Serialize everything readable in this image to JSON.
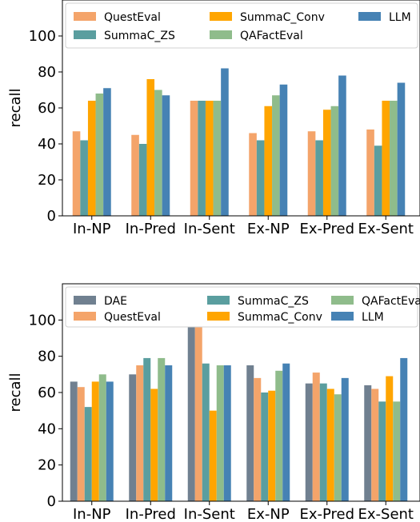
{
  "chart_data": [
    {
      "type": "bar",
      "title": "",
      "xlabel": "",
      "ylabel": "recall",
      "ylim": [
        0,
        120
      ],
      "yticks": [
        0,
        20,
        40,
        60,
        80,
        100
      ],
      "grid": false,
      "legend_position": "top",
      "categories": [
        "In-NP",
        "In-Pred",
        "In-Sent",
        "Ex-NP",
        "Ex-Pred",
        "Ex-Sent"
      ],
      "series": [
        {
          "name": "QuestEval",
          "color": "#f4a46a",
          "values": [
            47,
            45,
            64,
            46,
            47,
            48
          ]
        },
        {
          "name": "SummaC_ZS",
          "color": "#5a9e9f",
          "values": [
            42,
            40,
            64,
            42,
            42,
            39
          ]
        },
        {
          "name": "SummaC_Conv",
          "color": "#ffa500",
          "values": [
            64,
            76,
            64,
            61,
            59,
            64
          ]
        },
        {
          "name": "QAFactEval",
          "color": "#8fbc8b",
          "values": [
            68,
            70,
            64,
            67,
            61,
            64
          ]
        },
        {
          "name": "LLM",
          "color": "#4682b4",
          "values": [
            71,
            67,
            82,
            73,
            78,
            74
          ]
        }
      ]
    },
    {
      "type": "bar",
      "title": "",
      "xlabel": "",
      "ylabel": "recall",
      "ylim": [
        0,
        120
      ],
      "yticks": [
        0,
        20,
        40,
        60,
        80,
        100
      ],
      "grid": false,
      "legend_position": "top",
      "categories": [
        "In-NP",
        "In-Pred",
        "In-Sent",
        "Ex-NP",
        "Ex-Pred",
        "Ex-Sent"
      ],
      "series": [
        {
          "name": "DAE",
          "color": "#708090",
          "values": [
            66,
            70,
            100,
            75,
            65,
            64
          ]
        },
        {
          "name": "QuestEval",
          "color": "#f4a46a",
          "values": [
            63,
            75,
            100,
            68,
            71,
            62
          ]
        },
        {
          "name": "SummaC_ZS",
          "color": "#5a9e9f",
          "values": [
            52,
            79,
            76,
            60,
            65,
            55
          ]
        },
        {
          "name": "SummaC_Conv",
          "color": "#ffa500",
          "values": [
            66,
            62,
            50,
            61,
            62,
            69
          ]
        },
        {
          "name": "QAFactEval",
          "color": "#8fbc8b",
          "values": [
            70,
            79,
            75,
            72,
            59,
            55
          ]
        },
        {
          "name": "LLM",
          "color": "#4682b4",
          "values": [
            66,
            75,
            75,
            76,
            68,
            79
          ]
        }
      ]
    }
  ]
}
